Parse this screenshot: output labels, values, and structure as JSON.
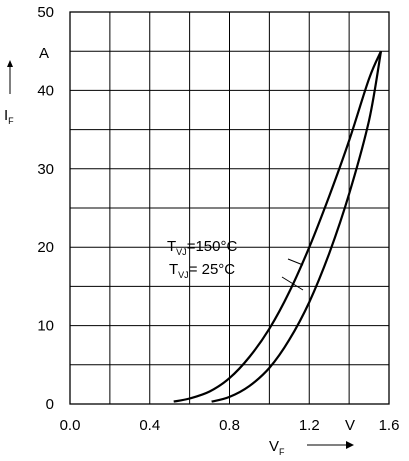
{
  "chart_data": {
    "type": "line",
    "title": "",
    "xlabel": {
      "main": "V",
      "sub": "F"
    },
    "ylabel": {
      "main": "I",
      "sub": "F"
    },
    "x_unit": "V",
    "y_unit": "A",
    "xlim": [
      0.0,
      1.6
    ],
    "ylim": [
      0,
      50
    ],
    "x_ticks": [
      "0.0",
      "0.4",
      "0.8",
      "1.2",
      "1.6"
    ],
    "y_ticks": [
      "0",
      "10",
      "20",
      "30",
      "40",
      "50"
    ],
    "grid": true,
    "series": [
      {
        "name": "150°C",
        "label": {
          "prefix": "T",
          "sub": "VJ",
          "text": "=150°C"
        },
        "x": [
          0.52,
          0.6,
          0.7,
          0.8,
          0.9,
          1.0,
          1.1,
          1.2,
          1.3,
          1.4,
          1.5,
          1.56
        ],
        "y": [
          0.3,
          0.7,
          1.6,
          3.3,
          6.0,
          9.6,
          14.3,
          20.0,
          26.5,
          33.6,
          41.5,
          45.0
        ]
      },
      {
        "name": "25°C",
        "label": {
          "prefix": "T",
          "sub": "VJ",
          "text": "=  25°C"
        },
        "x": [
          0.71,
          0.8,
          0.9,
          1.0,
          1.1,
          1.2,
          1.3,
          1.4,
          1.5,
          1.56
        ],
        "y": [
          0.3,
          0.9,
          2.3,
          4.6,
          8.2,
          13.0,
          19.2,
          26.8,
          36.2,
          45.0
        ]
      }
    ]
  }
}
